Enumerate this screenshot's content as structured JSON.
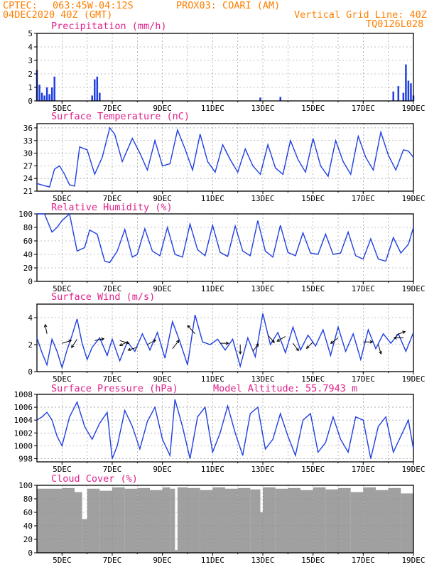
{
  "header": {
    "line1_left": "CPTEC:",
    "line1_coords": "063:45W-04:12S",
    "line1_station": "PROX03: COARI (AM)",
    "line2_left": "04DEC2020 40Z (GMT)",
    "line2_right": "Vertical Grid Line: 40Z",
    "line3_right": "TQ0126L028"
  },
  "colors": {
    "header": "#ff7f00",
    "panel_title": "#e0218a",
    "series_line": "#1f3fe0",
    "cloud_bars": "#a0a0a0",
    "precip_bars": "#1f3fe0"
  },
  "x_axis": {
    "range_days": [
      4,
      19
    ],
    "tick_labels": [
      "5DEC",
      "7DEC",
      "9DEC",
      "11DEC",
      "13DEC",
      "15DEC",
      "17DEC",
      "19DEC"
    ],
    "tick_days": [
      5,
      7,
      9,
      11,
      13,
      15,
      17,
      19
    ]
  },
  "panels": {
    "precip": {
      "title": "Precipitation (mm/h)",
      "y_ticks": [
        "0",
        "1",
        "2",
        "3",
        "4",
        "5"
      ]
    },
    "temp": {
      "title": "Surface Temperature (nC)",
      "y_ticks": [
        "21",
        "24",
        "27",
        "30",
        "33",
        "36"
      ]
    },
    "rh": {
      "title": "Relative Humidity (%)",
      "y_ticks": [
        "0",
        "20",
        "40",
        "60",
        "80",
        "100"
      ]
    },
    "wind": {
      "title": "Surface Wind (m/s)",
      "y_ticks": [
        "0",
        "2",
        "4"
      ]
    },
    "pressure": {
      "title": "Surface Pressure (hPa)",
      "altitude_label": "Model Altitude: 55.7943 m",
      "y_ticks": [
        "998",
        "1000",
        "1002",
        "1004",
        "1006",
        "1008"
      ]
    },
    "cloud": {
      "title": "Cloud Cover (%)",
      "y_ticks": [
        "0",
        "20",
        "40",
        "60",
        "80",
        "100"
      ]
    }
  },
  "chart_data": [
    {
      "type": "bar",
      "name": "precipitation",
      "title": "Precipitation (mm/h)",
      "ylim": [
        0,
        5
      ],
      "x": [
        4.0,
        4.1,
        4.2,
        4.3,
        4.4,
        4.5,
        4.6,
        4.7,
        6.2,
        6.3,
        6.4,
        6.5,
        12.9,
        13.7,
        18.2,
        18.4,
        18.6,
        18.7,
        18.8,
        18.9,
        19.0
      ],
      "values": [
        2.3,
        1.2,
        0.6,
        0.4,
        1.0,
        0.5,
        1.0,
        1.8,
        0.4,
        1.6,
        1.8,
        0.6,
        0.25,
        0.3,
        0.7,
        1.1,
        0.6,
        2.7,
        1.5,
        1.3,
        0.4
      ]
    },
    {
      "type": "line",
      "name": "surface_temperature",
      "title": "Surface Temperature (nC)",
      "ylim": [
        21,
        37
      ],
      "x": [
        4.0,
        4.3,
        4.5,
        4.7,
        4.9,
        5.1,
        5.3,
        5.5,
        5.7,
        6.0,
        6.3,
        6.6,
        6.9,
        7.1,
        7.4,
        7.8,
        8.1,
        8.4,
        8.7,
        9.0,
        9.3,
        9.6,
        9.9,
        10.2,
        10.5,
        10.8,
        11.1,
        11.4,
        11.7,
        12.0,
        12.3,
        12.6,
        12.9,
        13.2,
        13.5,
        13.8,
        14.1,
        14.4,
        14.7,
        15.0,
        15.3,
        15.6,
        15.9,
        16.2,
        16.5,
        16.8,
        17.1,
        17.4,
        17.7,
        18.0,
        18.3,
        18.6,
        18.8,
        19.0
      ],
      "values": [
        22.8,
        22.3,
        22.0,
        26.2,
        27.0,
        25.0,
        22.5,
        22.2,
        31.5,
        30.8,
        25.0,
        29.0,
        36.0,
        34.5,
        28.0,
        33.5,
        30.0,
        26.0,
        33.0,
        27.0,
        27.5,
        35.5,
        31.0,
        26.0,
        34.5,
        28.0,
        25.5,
        32.0,
        28.5,
        25.5,
        31.0,
        27.0,
        25.0,
        32.0,
        26.5,
        25.0,
        33.0,
        28.5,
        25.5,
        33.5,
        27.0,
        24.5,
        33.0,
        28.0,
        25.0,
        34.0,
        29.0,
        26.0,
        35.0,
        29.5,
        26.0,
        30.8,
        30.5,
        29.0
      ]
    },
    {
      "type": "line",
      "name": "relative_humidity",
      "title": "Relative Humidity (%)",
      "ylim": [
        0,
        100
      ],
      "x": [
        4.0,
        4.3,
        4.6,
        4.8,
        5.0,
        5.3,
        5.6,
        5.9,
        6.1,
        6.4,
        6.7,
        6.9,
        7.2,
        7.5,
        7.8,
        8.0,
        8.3,
        8.6,
        8.9,
        9.2,
        9.5,
        9.8,
        10.1,
        10.4,
        10.7,
        11.0,
        11.3,
        11.6,
        11.9,
        12.2,
        12.5,
        12.8,
        13.1,
        13.4,
        13.7,
        14.0,
        14.3,
        14.6,
        14.9,
        15.2,
        15.5,
        15.8,
        16.1,
        16.4,
        16.7,
        17.0,
        17.3,
        17.6,
        17.9,
        18.2,
        18.5,
        18.8,
        19.0
      ],
      "values": [
        100,
        100,
        73,
        80,
        90,
        100,
        45,
        50,
        76,
        70,
        30,
        28,
        45,
        77,
        36,
        40,
        78,
        45,
        38,
        80,
        40,
        36,
        85,
        47,
        38,
        83,
        43,
        37,
        82,
        45,
        38,
        90,
        45,
        36,
        83,
        43,
        38,
        72,
        42,
        40,
        70,
        40,
        42,
        73,
        38,
        33,
        63,
        33,
        30,
        65,
        42,
        55,
        80
      ]
    },
    {
      "type": "line",
      "name": "surface_wind",
      "title": "Surface Wind (m/s)",
      "ylim": [
        0,
        5
      ],
      "x": [
        4.0,
        4.2,
        4.4,
        4.6,
        4.8,
        5.0,
        5.2,
        5.4,
        5.6,
        5.8,
        6.0,
        6.2,
        6.5,
        6.8,
        7.0,
        7.3,
        7.6,
        7.9,
        8.2,
        8.5,
        8.8,
        9.1,
        9.4,
        9.7,
        10.0,
        10.3,
        10.6,
        10.9,
        11.2,
        11.5,
        11.8,
        12.1,
        12.4,
        12.7,
        13.0,
        13.3,
        13.6,
        13.9,
        14.2,
        14.5,
        14.8,
        15.1,
        15.4,
        15.7,
        16.0,
        16.3,
        16.6,
        16.9,
        17.2,
        17.5,
        17.8,
        18.1,
        18.4,
        18.7,
        19.0
      ],
      "values": [
        2.5,
        1.4,
        0.5,
        2.4,
        1.5,
        0.3,
        1.6,
        2.7,
        3.9,
        2.1,
        0.9,
        1.8,
        2.5,
        1.2,
        2.4,
        0.8,
        2.2,
        1.5,
        2.8,
        1.6,
        2.9,
        1.0,
        3.7,
        2.2,
        0.5,
        4.2,
        2.2,
        2.0,
        2.4,
        1.6,
        2.4,
        0.4,
        2.5,
        1.1,
        4.3,
        2.0,
        2.9,
        1.4,
        3.3,
        1.6,
        2.7,
        1.9,
        3.1,
        1.2,
        3.3,
        1.5,
        2.8,
        0.9,
        3.1,
        1.7,
        2.8,
        2.1,
        2.8,
        1.5,
        2.9
      ]
    },
    {
      "type": "line",
      "name": "surface_pressure",
      "title": "Surface Pressure (hPa)",
      "ylim": [
        997.5,
        1008
      ],
      "x": [
        4.0,
        4.2,
        4.4,
        4.6,
        4.8,
        5.0,
        5.3,
        5.6,
        5.9,
        6.2,
        6.5,
        6.8,
        7.0,
        7.2,
        7.5,
        7.8,
        8.1,
        8.4,
        8.7,
        9.0,
        9.3,
        9.5,
        9.8,
        10.1,
        10.4,
        10.7,
        11.0,
        11.3,
        11.6,
        11.9,
        12.2,
        12.5,
        12.8,
        13.1,
        13.4,
        13.7,
        14.0,
        14.3,
        14.6,
        14.9,
        15.2,
        15.5,
        15.8,
        16.1,
        16.4,
        16.7,
        17.0,
        17.3,
        17.6,
        17.9,
        18.2,
        18.5,
        18.8,
        19.0
      ],
      "values": [
        1004.0,
        1004.5,
        1005.2,
        1004.0,
        1001.5,
        1000.0,
        1004.5,
        1006.8,
        1003.0,
        1001.0,
        1003.5,
        1005.2,
        998.0,
        1000.0,
        1005.5,
        1003.0,
        999.5,
        1003.8,
        1006.0,
        1001.0,
        998.5,
        1007.2,
        1003.0,
        998.0,
        1004.5,
        1006.0,
        999.0,
        1002.0,
        1006.2,
        1002.0,
        998.5,
        1005.0,
        1006.0,
        999.5,
        1001.0,
        1005.0,
        1001.5,
        998.5,
        1004.0,
        1005.0,
        999.0,
        1000.5,
        1004.5,
        1001.0,
        999.0,
        1004.5,
        1004.0,
        998.0,
        1003.0,
        1004.5,
        999.0,
        1001.5,
        1004.0,
        999.5
      ]
    },
    {
      "type": "bar",
      "name": "cloud_cover",
      "title": "Cloud Cover (%)",
      "ylim": [
        0,
        100
      ],
      "x": [
        4.0,
        5.0,
        5.5,
        5.8,
        6.0,
        6.5,
        7.0,
        7.5,
        8.0,
        8.5,
        9.0,
        9.3,
        9.5,
        9.6,
        10.0,
        10.5,
        11.0,
        11.5,
        12.0,
        12.5,
        12.9,
        13.0,
        13.5,
        14.0,
        14.5,
        15.0,
        15.5,
        16.0,
        16.5,
        17.0,
        17.5,
        18.0,
        18.5,
        19.0
      ],
      "values": [
        95,
        96,
        90,
        50,
        95,
        92,
        97,
        95,
        96,
        93,
        97,
        95,
        4,
        97,
        96,
        93,
        97,
        95,
        96,
        94,
        60,
        97,
        95,
        96,
        93,
        97,
        94,
        96,
        90,
        97,
        93,
        96,
        88,
        94
      ]
    }
  ]
}
